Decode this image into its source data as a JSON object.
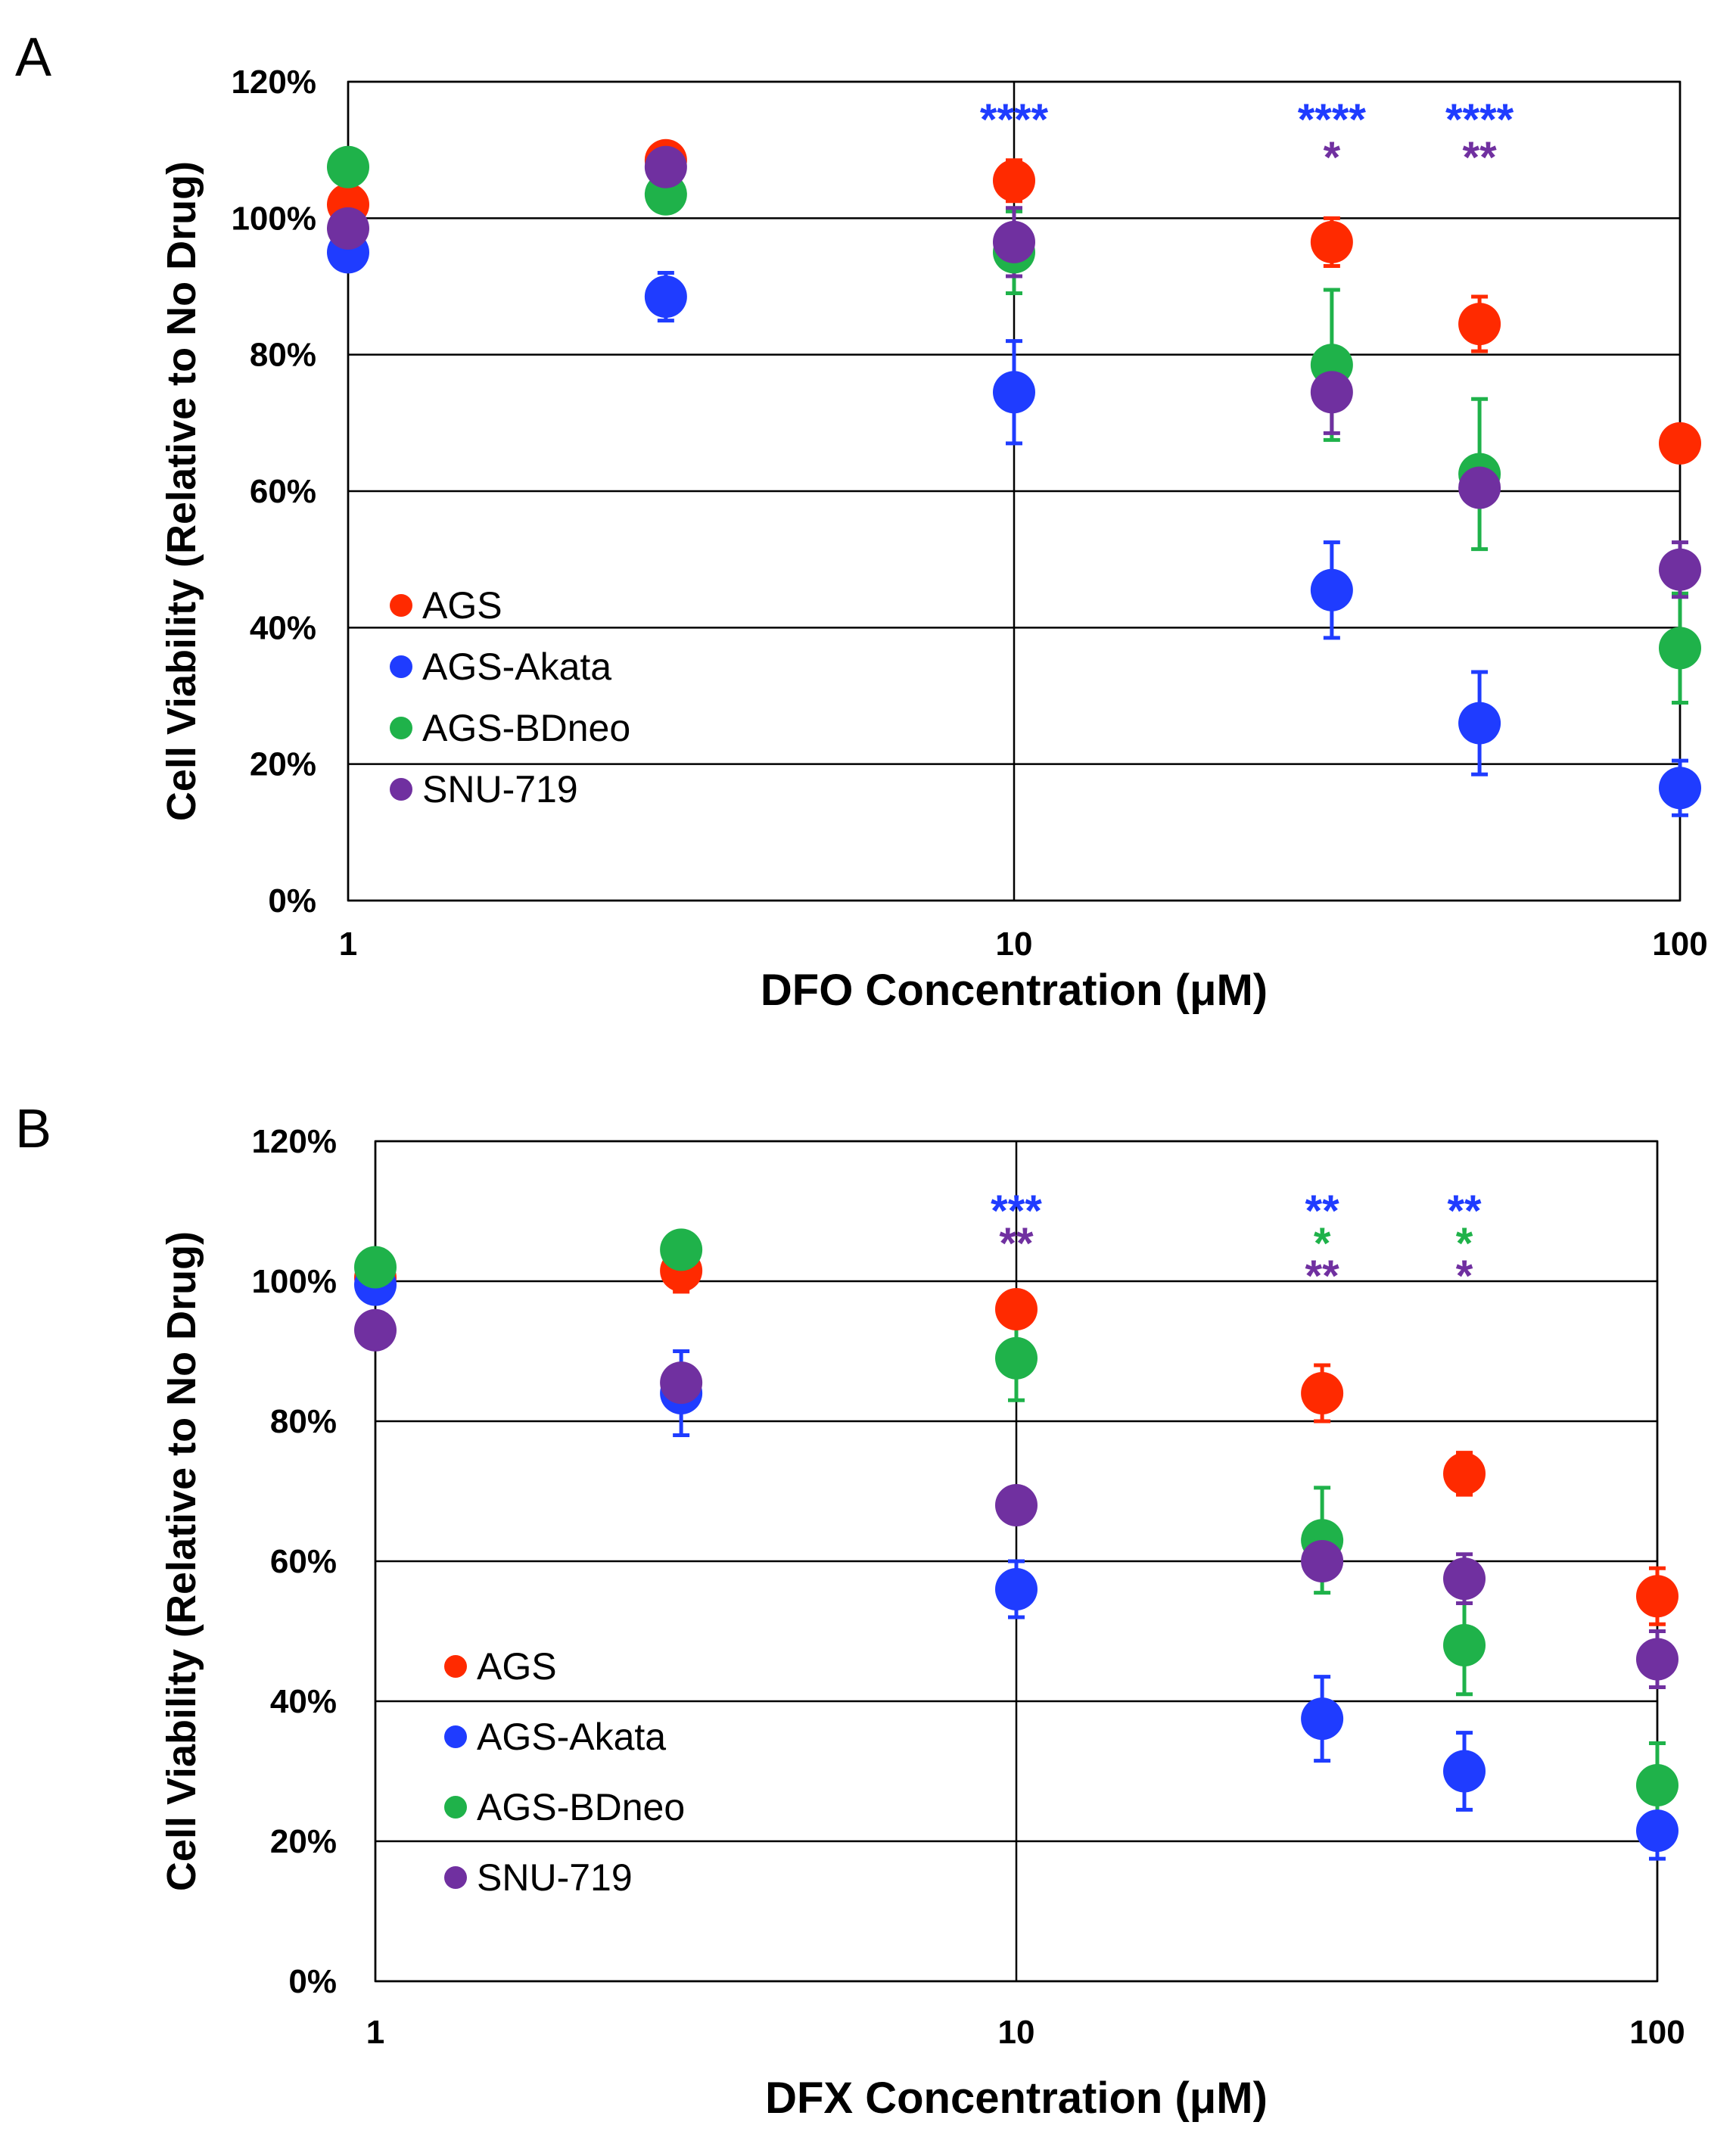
{
  "chart_data": [
    {
      "panel_label": "A",
      "type": "scatter",
      "xscale": "log",
      "xlim": [
        1,
        100
      ],
      "ylim": [
        0,
        1.2
      ],
      "xticks": [
        {
          "v": 1,
          "label": "1"
        },
        {
          "v": 10,
          "label": "10"
        },
        {
          "v": 100,
          "label": "100"
        }
      ],
      "yticks": [
        {
          "v": 0,
          "label": "0%"
        },
        {
          "v": 0.2,
          "label": "20%"
        },
        {
          "v": 0.4,
          "label": "40%"
        },
        {
          "v": 0.6,
          "label": "60%"
        },
        {
          "v": 0.8,
          "label": "80%"
        },
        {
          "v": 1.0,
          "label": "100%"
        },
        {
          "v": 1.2,
          "label": "120%"
        }
      ],
      "xlabel": "DFO Concentration (μM)",
      "ylabel": "Cell Viability (Relative to No Drug)",
      "grid": true,
      "legend_position": "left",
      "series": [
        {
          "name": "AGS",
          "color": "#ff2a00",
          "points": [
            {
              "x": 1,
              "y": 1.02,
              "err": 0.02
            },
            {
              "x": 3,
              "y": 1.085,
              "err": 0.02
            },
            {
              "x": 10,
              "y": 1.055,
              "err": 0.03
            },
            {
              "x": 30,
              "y": 0.965,
              "err": 0.035
            },
            {
              "x": 50,
              "y": 0.845,
              "err": 0.04
            },
            {
              "x": 100,
              "y": 0.67,
              "err": 0.02
            }
          ]
        },
        {
          "name": "AGS-Akata",
          "color": "#1f3cff",
          "points": [
            {
              "x": 1,
              "y": 0.95,
              "err": 0.02
            },
            {
              "x": 3,
              "y": 0.885,
              "err": 0.035
            },
            {
              "x": 10,
              "y": 0.745,
              "err": 0.075
            },
            {
              "x": 30,
              "y": 0.455,
              "err": 0.07
            },
            {
              "x": 50,
              "y": 0.26,
              "err": 0.075
            },
            {
              "x": 100,
              "y": 0.165,
              "err": 0.04
            }
          ]
        },
        {
          "name": "AGS-BDneo",
          "color": "#1fb24a",
          "points": [
            {
              "x": 1,
              "y": 1.075,
              "err": 0.02
            },
            {
              "x": 3,
              "y": 1.035,
              "err": 0.02
            },
            {
              "x": 10,
              "y": 0.95,
              "err": 0.06
            },
            {
              "x": 30,
              "y": 0.785,
              "err": 0.11
            },
            {
              "x": 50,
              "y": 0.625,
              "err": 0.11
            },
            {
              "x": 100,
              "y": 0.37,
              "err": 0.08
            }
          ]
        },
        {
          "name": "SNU-719",
          "color": "#7030a0",
          "points": [
            {
              "x": 1,
              "y": 0.985,
              "err": 0.02
            },
            {
              "x": 3,
              "y": 1.075,
              "err": 0.02
            },
            {
              "x": 10,
              "y": 0.965,
              "err": 0.05
            },
            {
              "x": 30,
              "y": 0.745,
              "err": 0.06
            },
            {
              "x": 50,
              "y": 0.605,
              "err": 0.02
            },
            {
              "x": 100,
              "y": 0.485,
              "err": 0.04
            }
          ]
        }
      ],
      "annotations": [
        {
          "x": 10,
          "lines": [
            {
              "text": "****",
              "color": "#1f3cff"
            }
          ]
        },
        {
          "x": 30,
          "lines": [
            {
              "text": "****",
              "color": "#1f3cff"
            },
            {
              "text": "*",
              "color": "#7030a0"
            }
          ]
        },
        {
          "x": 50,
          "lines": [
            {
              "text": "****",
              "color": "#1f3cff"
            },
            {
              "text": "**",
              "color": "#7030a0"
            }
          ]
        }
      ]
    },
    {
      "panel_label": "B",
      "type": "scatter",
      "xscale": "log",
      "xlim": [
        1,
        100
      ],
      "ylim": [
        0,
        1.2
      ],
      "xticks": [
        {
          "v": 1,
          "label": "1"
        },
        {
          "v": 10,
          "label": "10"
        },
        {
          "v": 100,
          "label": "100"
        }
      ],
      "yticks": [
        {
          "v": 0,
          "label": "0%"
        },
        {
          "v": 0.2,
          "label": "20%"
        },
        {
          "v": 0.4,
          "label": "40%"
        },
        {
          "v": 0.6,
          "label": "60%"
        },
        {
          "v": 0.8,
          "label": "80%"
        },
        {
          "v": 1.0,
          "label": "100%"
        },
        {
          "v": 1.2,
          "label": "120%"
        }
      ],
      "xlabel": "DFX Concentration (μM)",
      "ylabel": "Cell Viability (Relative to No Drug)",
      "grid": true,
      "legend_position": "left",
      "series": [
        {
          "name": "AGS",
          "color": "#ff2a00",
          "points": [
            {
              "x": 1,
              "y": 1.005,
              "err": 0.02
            },
            {
              "x": 3,
              "y": 1.015,
              "err": 0.03
            },
            {
              "x": 10,
              "y": 0.96,
              "err": 0.02
            },
            {
              "x": 30,
              "y": 0.84,
              "err": 0.04
            },
            {
              "x": 50,
              "y": 0.725,
              "err": 0.03
            },
            {
              "x": 100,
              "y": 0.55,
              "err": 0.04
            }
          ]
        },
        {
          "name": "AGS-Akata",
          "color": "#1f3cff",
          "points": [
            {
              "x": 1,
              "y": 0.995,
              "err": 0.02
            },
            {
              "x": 3,
              "y": 0.84,
              "err": 0.06
            },
            {
              "x": 10,
              "y": 0.56,
              "err": 0.04
            },
            {
              "x": 30,
              "y": 0.375,
              "err": 0.06
            },
            {
              "x": 50,
              "y": 0.3,
              "err": 0.055
            },
            {
              "x": 100,
              "y": 0.215,
              "err": 0.04
            }
          ]
        },
        {
          "name": "AGS-BDneo",
          "color": "#1fb24a",
          "points": [
            {
              "x": 1,
              "y": 1.02,
              "err": 0.02
            },
            {
              "x": 3,
              "y": 1.045,
              "err": 0.02
            },
            {
              "x": 10,
              "y": 0.89,
              "err": 0.06
            },
            {
              "x": 30,
              "y": 0.63,
              "err": 0.075
            },
            {
              "x": 50,
              "y": 0.48,
              "err": 0.07
            },
            {
              "x": 100,
              "y": 0.28,
              "err": 0.06
            }
          ]
        },
        {
          "name": "SNU-719",
          "color": "#7030a0",
          "points": [
            {
              "x": 1,
              "y": 0.93,
              "err": 0.02
            },
            {
              "x": 3,
              "y": 0.855,
              "err": 0.02
            },
            {
              "x": 10,
              "y": 0.68,
              "err": 0.02
            },
            {
              "x": 30,
              "y": 0.6,
              "err": 0.02
            },
            {
              "x": 50,
              "y": 0.575,
              "err": 0.035
            },
            {
              "x": 100,
              "y": 0.46,
              "err": 0.04
            }
          ]
        }
      ],
      "annotations": [
        {
          "x": 10,
          "lines": [
            {
              "text": "***",
              "color": "#1f3cff"
            },
            {
              "text": "**",
              "color": "#7030a0"
            }
          ]
        },
        {
          "x": 30,
          "lines": [
            {
              "text": "**",
              "color": "#1f3cff"
            },
            {
              "text": "*",
              "color": "#1fb24a"
            },
            {
              "text": "**",
              "color": "#7030a0"
            }
          ]
        },
        {
          "x": 50,
          "lines": [
            {
              "text": "**",
              "color": "#1f3cff"
            },
            {
              "text": "*",
              "color": "#1fb24a"
            },
            {
              "text": "*",
              "color": "#7030a0"
            }
          ]
        }
      ]
    }
  ]
}
